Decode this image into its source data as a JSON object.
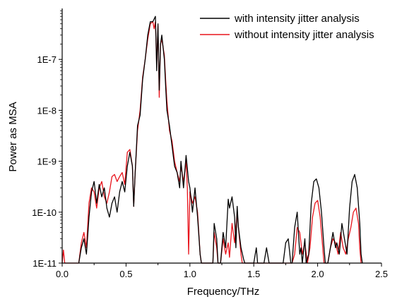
{
  "chart_data": {
    "type": "line",
    "title": "",
    "xlabel": "Frequency/THz",
    "ylabel": "Power as MSA",
    "xlim": [
      0.0,
      2.5
    ],
    "ylim": [
      1e-11,
      1e-06
    ],
    "yscale": "log",
    "grid": false,
    "legend_position": "top-right",
    "x_ticks": [
      {
        "value": 0.0,
        "label": "0.0"
      },
      {
        "value": 0.5,
        "label": "0.5"
      },
      {
        "value": 1.0,
        "label": "1.0"
      },
      {
        "value": 1.5,
        "label": "1.5"
      },
      {
        "value": 2.0,
        "label": "2.0"
      },
      {
        "value": 2.5,
        "label": "2.5"
      }
    ],
    "y_ticks": [
      {
        "value": 1e-11,
        "label": "1E-11"
      },
      {
        "value": 1e-10,
        "label": "1E-10"
      },
      {
        "value": 1e-09,
        "label": "1E-9"
      },
      {
        "value": 1e-08,
        "label": "1E-8"
      },
      {
        "value": 1e-07,
        "label": "1E-7"
      }
    ],
    "series": [
      {
        "name": "with intensity jitter analysis",
        "color": "#000000",
        "points": [
          [
            0.13,
            1e-11
          ],
          [
            0.15,
            2e-11
          ],
          [
            0.17,
            3e-11
          ],
          [
            0.19,
            1.5e-11
          ],
          [
            0.21,
            8e-11
          ],
          [
            0.23,
            2.5e-10
          ],
          [
            0.25,
            4e-10
          ],
          [
            0.27,
            1.5e-10
          ],
          [
            0.29,
            3.5e-10
          ],
          [
            0.31,
            2e-10
          ],
          [
            0.33,
            3e-10
          ],
          [
            0.35,
            1.2e-10
          ],
          [
            0.37,
            8e-11
          ],
          [
            0.39,
            1.5e-10
          ],
          [
            0.41,
            2e-10
          ],
          [
            0.43,
            1e-10
          ],
          [
            0.45,
            2.5e-10
          ],
          [
            0.47,
            4e-10
          ],
          [
            0.49,
            2.5e-10
          ],
          [
            0.51,
            8e-10
          ],
          [
            0.53,
            1.5e-09
          ],
          [
            0.55,
            8e-10
          ],
          [
            0.56,
            1.3e-10
          ],
          [
            0.57,
            5e-10
          ],
          [
            0.59,
            5e-09
          ],
          [
            0.61,
            8e-09
          ],
          [
            0.63,
            4e-08
          ],
          [
            0.65,
            1e-07
          ],
          [
            0.67,
            3e-07
          ],
          [
            0.69,
            5.5e-07
          ],
          [
            0.71,
            5.5e-07
          ],
          [
            0.73,
            7e-07
          ],
          [
            0.74,
            6e-08
          ],
          [
            0.75,
            5e-07
          ],
          [
            0.76,
            2.5e-08
          ],
          [
            0.77,
            2e-07
          ],
          [
            0.78,
            3e-07
          ],
          [
            0.8,
            1e-07
          ],
          [
            0.81,
            3e-08
          ],
          [
            0.82,
            1e-08
          ],
          [
            0.84,
            5e-09
          ],
          [
            0.86,
            2e-09
          ],
          [
            0.88,
            8e-10
          ],
          [
            0.9,
            6e-10
          ],
          [
            0.92,
            3e-10
          ],
          [
            0.93,
            1e-09
          ],
          [
            0.95,
            3e-10
          ],
          [
            0.97,
            1.3e-09
          ],
          [
            0.99,
            4e-10
          ],
          [
            1.0,
            3e-10
          ],
          [
            1.02,
            1e-10
          ],
          [
            1.04,
            3e-10
          ],
          [
            1.06,
            8e-11
          ],
          [
            1.08,
            1.5e-11
          ],
          [
            1.09,
            1e-11
          ],
          [
            1.18,
            1e-11
          ],
          [
            1.19,
            6e-11
          ],
          [
            1.21,
            3e-11
          ],
          [
            1.22,
            1e-11
          ],
          [
            1.24,
            1e-11
          ],
          [
            1.26,
            4e-11
          ],
          [
            1.28,
            2e-11
          ],
          [
            1.3,
            1.8e-10
          ],
          [
            1.31,
            1.2e-10
          ],
          [
            1.33,
            2e-10
          ],
          [
            1.35,
            8e-11
          ],
          [
            1.36,
            2e-11
          ],
          [
            1.37,
            1.3e-10
          ],
          [
            1.38,
            5e-11
          ],
          [
            1.4,
            2e-11
          ],
          [
            1.42,
            1.2e-11
          ],
          [
            1.43,
            1e-11
          ],
          [
            1.5,
            1e-11
          ],
          [
            1.52,
            2e-11
          ],
          [
            1.53,
            1e-11
          ],
          [
            1.58,
            1e-11
          ],
          [
            1.6,
            2e-11
          ],
          [
            1.62,
            1e-11
          ],
          [
            1.73,
            1e-11
          ],
          [
            1.75,
            2.5e-11
          ],
          [
            1.77,
            3e-11
          ],
          [
            1.79,
            1e-11
          ],
          [
            1.8,
            1e-11
          ],
          [
            1.82,
            5e-11
          ],
          [
            1.84,
            1e-10
          ],
          [
            1.86,
            1.5e-11
          ],
          [
            1.87,
            2e-11
          ],
          [
            1.88,
            1e-11
          ],
          [
            1.9,
            3e-11
          ],
          [
            1.91,
            1e-11
          ],
          [
            1.93,
            1.5e-11
          ],
          [
            1.95,
            1.5e-10
          ],
          [
            1.97,
            4e-10
          ],
          [
            1.99,
            4.5e-10
          ],
          [
            2.01,
            3e-10
          ],
          [
            2.03,
            1e-10
          ],
          [
            2.05,
            2e-11
          ],
          [
            2.06,
            1e-11
          ],
          [
            2.08,
            1e-11
          ],
          [
            2.1,
            2e-11
          ],
          [
            2.12,
            4e-11
          ],
          [
            2.14,
            2e-11
          ],
          [
            2.15,
            2.5e-11
          ],
          [
            2.17,
            1.5e-11
          ],
          [
            2.19,
            6e-11
          ],
          [
            2.21,
            3e-11
          ],
          [
            2.23,
            1.5e-11
          ],
          [
            2.25,
            1.2e-10
          ],
          [
            2.27,
            4e-10
          ],
          [
            2.29,
            5.5e-10
          ],
          [
            2.31,
            3e-10
          ],
          [
            2.33,
            6e-11
          ],
          [
            2.34,
            1.5e-11
          ],
          [
            2.35,
            1e-11
          ]
        ]
      },
      {
        "name": "without intensity jitter analysis",
        "color": "#e8141c",
        "points": [
          [
            0.0,
            1e-11
          ],
          [
            0.01,
            1.8e-11
          ],
          [
            0.02,
            1e-11
          ],
          [
            0.13,
            1e-11
          ],
          [
            0.15,
            2.5e-11
          ],
          [
            0.17,
            4e-11
          ],
          [
            0.19,
            2e-11
          ],
          [
            0.21,
            1.5e-10
          ],
          [
            0.23,
            3e-10
          ],
          [
            0.25,
            2.5e-10
          ],
          [
            0.27,
            1.2e-10
          ],
          [
            0.29,
            3e-10
          ],
          [
            0.31,
            4e-10
          ],
          [
            0.33,
            2e-10
          ],
          [
            0.35,
            1.5e-10
          ],
          [
            0.37,
            2.5e-10
          ],
          [
            0.39,
            5e-10
          ],
          [
            0.41,
            5.5e-10
          ],
          [
            0.43,
            4e-10
          ],
          [
            0.45,
            5e-10
          ],
          [
            0.47,
            6e-10
          ],
          [
            0.49,
            3.5e-10
          ],
          [
            0.51,
            1.5e-09
          ],
          [
            0.53,
            1.7e-09
          ],
          [
            0.55,
            8e-10
          ],
          [
            0.56,
            1.3e-10
          ],
          [
            0.57,
            5e-10
          ],
          [
            0.59,
            4e-09
          ],
          [
            0.61,
            1e-08
          ],
          [
            0.63,
            4.5e-08
          ],
          [
            0.65,
            1e-07
          ],
          [
            0.67,
            2.5e-07
          ],
          [
            0.69,
            5e-07
          ],
          [
            0.71,
            5.5e-07
          ],
          [
            0.72,
            4e-07
          ],
          [
            0.73,
            5.5e-07
          ],
          [
            0.74,
            8e-08
          ],
          [
            0.75,
            4.5e-07
          ],
          [
            0.76,
            1.8e-08
          ],
          [
            0.77,
            2e-07
          ],
          [
            0.78,
            2.5e-07
          ],
          [
            0.8,
            1.2e-07
          ],
          [
            0.81,
            4e-08
          ],
          [
            0.82,
            1.5e-08
          ],
          [
            0.84,
            4e-09
          ],
          [
            0.86,
            2.5e-09
          ],
          [
            0.88,
            1e-09
          ],
          [
            0.9,
            6e-10
          ],
          [
            0.92,
            4e-10
          ],
          [
            0.93,
            8e-10
          ],
          [
            0.95,
            4e-10
          ],
          [
            0.97,
            1e-09
          ],
          [
            0.98,
            3e-10
          ],
          [
            0.99,
            1.5e-11
          ],
          [
            1.0,
            2.5e-10
          ],
          [
            1.02,
            1.5e-10
          ],
          [
            1.04,
            2e-10
          ],
          [
            1.06,
            1e-10
          ],
          [
            1.08,
            1.5e-11
          ],
          [
            1.09,
            1e-11
          ],
          [
            1.18,
            1e-11
          ],
          [
            1.19,
            4e-11
          ],
          [
            1.21,
            2e-11
          ],
          [
            1.22,
            1e-11
          ],
          [
            1.24,
            1e-11
          ],
          [
            1.26,
            3e-11
          ],
          [
            1.28,
            1.5e-11
          ],
          [
            1.3,
            2.5e-11
          ],
          [
            1.31,
            1.3e-11
          ],
          [
            1.33,
            6e-11
          ],
          [
            1.35,
            2.5e-11
          ],
          [
            1.37,
            1e-10
          ],
          [
            1.38,
            5e-11
          ],
          [
            1.4,
            1.5e-11
          ],
          [
            1.41,
            1e-11
          ],
          [
            1.8,
            1e-11
          ],
          [
            1.82,
            1.5e-11
          ],
          [
            1.84,
            5e-11
          ],
          [
            1.86,
            4e-11
          ],
          [
            1.88,
            1.5e-11
          ],
          [
            1.9,
            2.5e-11
          ],
          [
            1.92,
            1e-11
          ],
          [
            1.94,
            2e-11
          ],
          [
            1.96,
            8e-11
          ],
          [
            1.98,
            1.5e-10
          ],
          [
            2.0,
            1.7e-10
          ],
          [
            2.02,
            8e-11
          ],
          [
            2.04,
            2e-11
          ],
          [
            2.05,
            1e-11
          ],
          [
            2.08,
            1e-11
          ],
          [
            2.1,
            2e-11
          ],
          [
            2.12,
            3e-11
          ],
          [
            2.14,
            2.5e-11
          ],
          [
            2.16,
            1.5e-11
          ],
          [
            2.18,
            4e-11
          ],
          [
            2.2,
            2e-11
          ],
          [
            2.22,
            1.5e-11
          ],
          [
            2.24,
            3e-11
          ],
          [
            2.26,
            5e-11
          ],
          [
            2.28,
            1e-10
          ],
          [
            2.3,
            1.2e-10
          ],
          [
            2.32,
            6e-11
          ],
          [
            2.33,
            2e-11
          ],
          [
            2.34,
            1e-11
          ]
        ]
      }
    ]
  }
}
